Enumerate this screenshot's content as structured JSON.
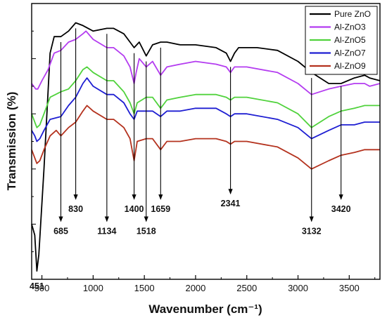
{
  "chart_data": {
    "type": "line",
    "title": "",
    "xlabel": "Wavenumber (cm⁻¹)",
    "ylabel": "Transmission (%)",
    "xlim": [
      400,
      3800
    ],
    "ylim": [
      0,
      100
    ],
    "x_ticks": [
      500,
      1000,
      1500,
      2000,
      2500,
      3000,
      3500
    ],
    "y_tick_labels_shown": false,
    "legend_position": "top-right",
    "series": [
      {
        "name": "Pure ZnO",
        "color": "#000000",
        "points": [
          [
            400,
            20
          ],
          [
            430,
            16
          ],
          [
            451,
            3
          ],
          [
            470,
            9
          ],
          [
            520,
            40
          ],
          [
            580,
            82
          ],
          [
            620,
            88
          ],
          [
            685,
            88
          ],
          [
            760,
            90
          ],
          [
            830,
            93
          ],
          [
            900,
            92
          ],
          [
            1000,
            90
          ],
          [
            1134,
            91
          ],
          [
            1200,
            91
          ],
          [
            1300,
            89
          ],
          [
            1360,
            86
          ],
          [
            1400,
            84
          ],
          [
            1450,
            86
          ],
          [
            1518,
            81
          ],
          [
            1580,
            85
          ],
          [
            1659,
            86
          ],
          [
            1720,
            86
          ],
          [
            1850,
            85
          ],
          [
            2000,
            85
          ],
          [
            2200,
            84
          ],
          [
            2300,
            82
          ],
          [
            2341,
            79
          ],
          [
            2380,
            82
          ],
          [
            2420,
            84
          ],
          [
            2600,
            84
          ],
          [
            2800,
            83
          ],
          [
            3000,
            79
          ],
          [
            3132,
            75
          ],
          [
            3300,
            71
          ],
          [
            3420,
            71
          ],
          [
            3550,
            73
          ],
          [
            3650,
            74
          ],
          [
            3700,
            73
          ],
          [
            3800,
            72
          ]
        ]
      },
      {
        "name": "Al-ZnO3",
        "color": "#b43cf0",
        "points": [
          [
            400,
            71
          ],
          [
            440,
            69
          ],
          [
            460,
            69
          ],
          [
            500,
            72
          ],
          [
            560,
            76
          ],
          [
            620,
            82
          ],
          [
            685,
            83
          ],
          [
            760,
            86
          ],
          [
            830,
            87
          ],
          [
            900,
            89
          ],
          [
            930,
            90
          ],
          [
            1000,
            87
          ],
          [
            1134,
            84
          ],
          [
            1200,
            84
          ],
          [
            1300,
            81
          ],
          [
            1360,
            77
          ],
          [
            1400,
            71
          ],
          [
            1420,
            75
          ],
          [
            1450,
            80
          ],
          [
            1518,
            77
          ],
          [
            1580,
            79
          ],
          [
            1659,
            74
          ],
          [
            1720,
            77
          ],
          [
            1850,
            78
          ],
          [
            2000,
            79
          ],
          [
            2200,
            78
          ],
          [
            2300,
            77
          ],
          [
            2341,
            75
          ],
          [
            2380,
            77
          ],
          [
            2500,
            77
          ],
          [
            2800,
            75
          ],
          [
            3000,
            71
          ],
          [
            3132,
            67
          ],
          [
            3300,
            69
          ],
          [
            3420,
            70
          ],
          [
            3550,
            71
          ],
          [
            3650,
            71
          ],
          [
            3700,
            70
          ],
          [
            3800,
            71
          ]
        ]
      },
      {
        "name": "Al-ZnO5",
        "color": "#50d23c",
        "points": [
          [
            400,
            60
          ],
          [
            430,
            57
          ],
          [
            451,
            55
          ],
          [
            480,
            56
          ],
          [
            520,
            60
          ],
          [
            580,
            66
          ],
          [
            685,
            68
          ],
          [
            760,
            69
          ],
          [
            830,
            72
          ],
          [
            900,
            76
          ],
          [
            940,
            77
          ],
          [
            1000,
            75
          ],
          [
            1134,
            72
          ],
          [
            1200,
            72
          ],
          [
            1300,
            68
          ],
          [
            1360,
            64
          ],
          [
            1400,
            60
          ],
          [
            1430,
            64
          ],
          [
            1518,
            66
          ],
          [
            1580,
            66
          ],
          [
            1659,
            62
          ],
          [
            1720,
            65
          ],
          [
            1850,
            66
          ],
          [
            2000,
            67
          ],
          [
            2200,
            67
          ],
          [
            2300,
            66
          ],
          [
            2341,
            65
          ],
          [
            2380,
            66
          ],
          [
            2500,
            66
          ],
          [
            2800,
            64
          ],
          [
            3000,
            60
          ],
          [
            3132,
            55
          ],
          [
            3300,
            59
          ],
          [
            3420,
            61
          ],
          [
            3550,
            62
          ],
          [
            3650,
            63
          ],
          [
            3800,
            63
          ]
        ]
      },
      {
        "name": "Al-ZnO7",
        "color": "#1e1ed2",
        "points": [
          [
            400,
            54
          ],
          [
            430,
            52
          ],
          [
            451,
            50
          ],
          [
            480,
            51
          ],
          [
            520,
            54
          ],
          [
            580,
            58
          ],
          [
            685,
            59
          ],
          [
            760,
            63
          ],
          [
            830,
            66
          ],
          [
            900,
            71
          ],
          [
            940,
            73
          ],
          [
            1000,
            70
          ],
          [
            1134,
            67
          ],
          [
            1200,
            67
          ],
          [
            1300,
            64
          ],
          [
            1360,
            60
          ],
          [
            1400,
            58
          ],
          [
            1430,
            61
          ],
          [
            1518,
            61
          ],
          [
            1580,
            61
          ],
          [
            1659,
            59
          ],
          [
            1720,
            61
          ],
          [
            1850,
            61
          ],
          [
            2000,
            62
          ],
          [
            2200,
            62
          ],
          [
            2300,
            60
          ],
          [
            2341,
            59
          ],
          [
            2380,
            60
          ],
          [
            2500,
            60
          ],
          [
            2800,
            58
          ],
          [
            3000,
            55
          ],
          [
            3132,
            51
          ],
          [
            3300,
            54
          ],
          [
            3420,
            56
          ],
          [
            3550,
            56
          ],
          [
            3650,
            57
          ],
          [
            3800,
            57
          ]
        ]
      },
      {
        "name": "Al-ZnO9",
        "color": "#b4321e",
        "points": [
          [
            400,
            47
          ],
          [
            430,
            44
          ],
          [
            451,
            42
          ],
          [
            480,
            43
          ],
          [
            520,
            47
          ],
          [
            580,
            52
          ],
          [
            640,
            54
          ],
          [
            685,
            52
          ],
          [
            760,
            55
          ],
          [
            830,
            57
          ],
          [
            900,
            61
          ],
          [
            940,
            63
          ],
          [
            1000,
            61
          ],
          [
            1134,
            58
          ],
          [
            1200,
            58
          ],
          [
            1300,
            55
          ],
          [
            1360,
            51
          ],
          [
            1400,
            43
          ],
          [
            1430,
            50
          ],
          [
            1518,
            51
          ],
          [
            1580,
            51
          ],
          [
            1659,
            47
          ],
          [
            1720,
            50
          ],
          [
            1850,
            50
          ],
          [
            2000,
            51
          ],
          [
            2200,
            51
          ],
          [
            2300,
            50
          ],
          [
            2341,
            49
          ],
          [
            2380,
            50
          ],
          [
            2500,
            50
          ],
          [
            2800,
            48
          ],
          [
            3000,
            44
          ],
          [
            3132,
            40
          ],
          [
            3300,
            43
          ],
          [
            3420,
            45
          ],
          [
            3550,
            46
          ],
          [
            3650,
            47
          ],
          [
            3800,
            47
          ]
        ]
      }
    ],
    "annotations": [
      {
        "label": "451",
        "x": 451,
        "y_from": 3,
        "y_to": 3
      },
      {
        "label": "685",
        "x": 685,
        "y_from": 86,
        "y_to": 21
      },
      {
        "label": "830",
        "x": 830,
        "y_from": 91,
        "y_to": 29
      },
      {
        "label": "1134",
        "x": 1134,
        "y_from": 89,
        "y_to": 21
      },
      {
        "label": "1400",
        "x": 1400,
        "y_from": 82,
        "y_to": 29
      },
      {
        "label": "1518",
        "x": 1518,
        "y_from": 79,
        "y_to": 21
      },
      {
        "label": "1659",
        "x": 1659,
        "y_from": 84,
        "y_to": 29
      },
      {
        "label": "2341",
        "x": 2341,
        "y_from": 77,
        "y_to": 31
      },
      {
        "label": "3132",
        "x": 3132,
        "y_from": 73,
        "y_to": 21
      },
      {
        "label": "3420",
        "x": 3420,
        "y_from": 70,
        "y_to": 29
      }
    ]
  }
}
